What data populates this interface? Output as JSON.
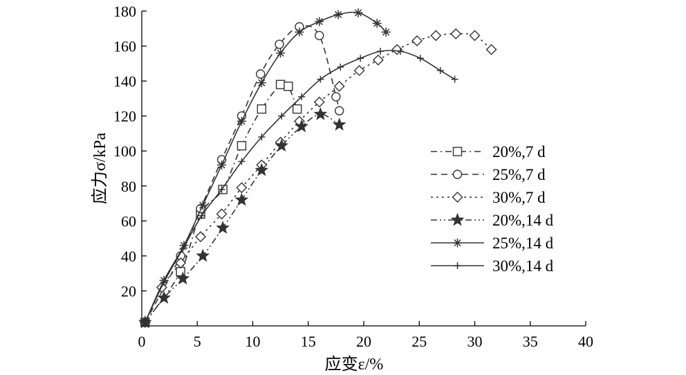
{
  "chart_data": {
    "type": "line",
    "title": "",
    "xlabel": "应变ε/%",
    "ylabel": "应力σ/kPa",
    "xlim": [
      0,
      40
    ],
    "ylim": [
      0,
      180
    ],
    "xticks": [
      0,
      5,
      10,
      15,
      20,
      25,
      30,
      35,
      40
    ],
    "yticks": [
      20,
      40,
      60,
      80,
      100,
      120,
      140,
      160,
      180
    ],
    "grid": false,
    "legend_position": "right",
    "series": [
      {
        "name": "20%,7 d",
        "linestyle": "dash-dot",
        "marker": "square",
        "x": [
          0.3,
          3.5,
          5.3,
          7.3,
          9.0,
          10.8,
          12.5,
          13.2,
          14.0
        ],
        "y": [
          2,
          31,
          64,
          78,
          103,
          124,
          138,
          137,
          124
        ]
      },
      {
        "name": "25%,7 d",
        "linestyle": "dashed",
        "marker": "circle",
        "x": [
          0.3,
          3.5,
          5.3,
          7.2,
          9.0,
          10.7,
          12.4,
          14.2,
          16.0,
          17.5,
          17.8
        ],
        "y": [
          2,
          40,
          67,
          95,
          120,
          144,
          161,
          171,
          166,
          131,
          123
        ]
      },
      {
        "name": "30%,7 d",
        "linestyle": "dotted",
        "marker": "diamond",
        "x": [
          0.3,
          1.8,
          3.5,
          5.3,
          7.2,
          9.0,
          10.8,
          12.5,
          14.2,
          16.0,
          17.8,
          19.6,
          21.3,
          23.0,
          24.8,
          26.5,
          28.3,
          30.0,
          31.5
        ],
        "y": [
          2,
          22,
          36,
          51,
          64,
          79,
          92,
          105,
          117,
          128,
          137,
          146,
          152,
          158,
          163,
          166,
          167,
          166,
          158
        ]
      },
      {
        "name": "20%,14 d",
        "linestyle": "dash-dot-dot",
        "marker": "star",
        "x": [
          0.3,
          2.0,
          3.7,
          5.5,
          7.3,
          9.0,
          10.8,
          12.6,
          14.4,
          16.1,
          17.8
        ],
        "y": [
          2,
          16,
          27,
          40,
          56,
          72,
          89,
          103,
          114,
          121,
          115
        ]
      },
      {
        "name": "25%,14 d",
        "linestyle": "solid",
        "marker": "asterisk",
        "x": [
          0.3,
          2.0,
          3.8,
          5.5,
          7.2,
          9.0,
          10.8,
          12.5,
          14.2,
          16.0,
          17.7,
          19.5,
          21.2,
          22.0
        ],
        "y": [
          2,
          26,
          46,
          69,
          92,
          117,
          139,
          156,
          168,
          174,
          178,
          179,
          173,
          168
        ]
      },
      {
        "name": "30%,14 d",
        "linestyle": "solid",
        "marker": "plus",
        "x": [
          0.3,
          2.0,
          3.7,
          5.4,
          7.2,
          9.0,
          10.8,
          12.6,
          14.4,
          16.1,
          17.9,
          19.7,
          21.5,
          23.3,
          25.1,
          26.9,
          28.2
        ],
        "y": [
          2,
          25,
          44,
          63,
          78,
          94,
          108,
          120,
          131,
          141,
          148,
          153,
          157,
          157,
          153,
          146,
          141
        ]
      }
    ]
  }
}
